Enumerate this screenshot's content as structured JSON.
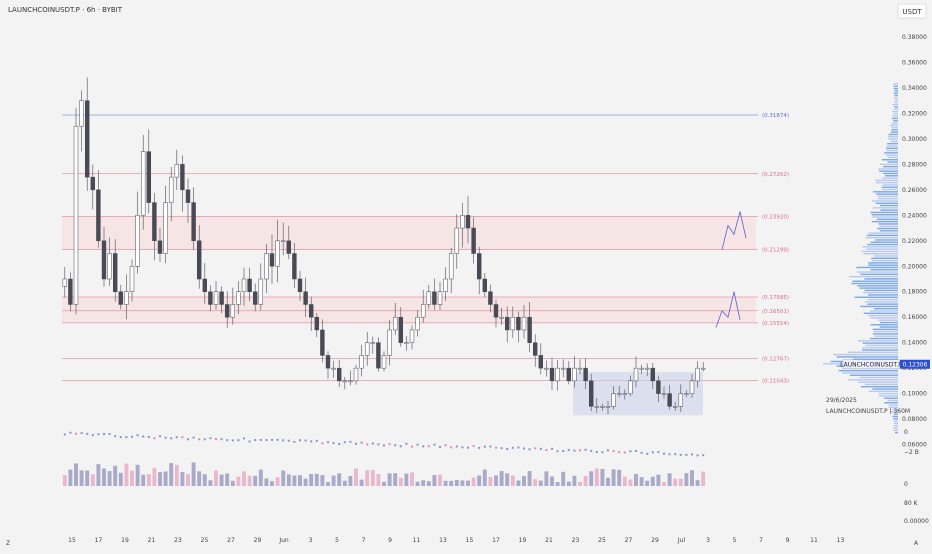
{
  "header": {
    "symbol_title": "LAUNCHCOINUSDT.P · 6h · BYBIT",
    "currency_button": "USDT"
  },
  "chart_data": {
    "type": "candlestick",
    "symbol": "LAUNCHCOINUSDT.P",
    "interval": "6h",
    "exchange": "BYBIT",
    "currency": "USDT",
    "price_axis": {
      "range": [
        0.0,
        0.39
      ],
      "ticks": [
        "0.38000",
        "0.36000",
        "0.34000",
        "0.32000",
        "0.30000",
        "0.28000",
        "0.26000",
        "0.24000",
        "0.22000",
        "0.20000",
        "0.18000",
        "0.16000",
        "0.14000",
        "0.12000",
        "0.10000",
        "0.08000",
        "0.06000",
        "0.04000",
        "0.02000",
        "0.00000"
      ]
    },
    "time_axis": {
      "labels": [
        "15",
        "17",
        "19",
        "21",
        "23",
        "25",
        "27",
        "29",
        "Jun",
        "3",
        "5",
        "7",
        "9",
        "11",
        "13",
        "15",
        "17",
        "19",
        "21",
        "23",
        "25",
        "27",
        "29",
        "Jul",
        "3",
        "5",
        "7",
        "9",
        "11",
        "13"
      ]
    },
    "levels": [
      {
        "label": "(0.31874)",
        "value": 0.31874,
        "color": "#5a6fd6"
      },
      {
        "label": "(0.27262)",
        "value": 0.27262,
        "color": "#e26a8a"
      },
      {
        "label": "(0.23920)",
        "value": 0.2392,
        "color": "#e26a8a"
      },
      {
        "label": "(0.21299)",
        "value": 0.21299,
        "color": "#e26a8a"
      },
      {
        "label": "(0.17585)",
        "value": 0.17585,
        "color": "#e26a8a"
      },
      {
        "label": "(0.16501)",
        "value": 0.16501,
        "color": "#e26a8a"
      },
      {
        "label": "(0.15554)",
        "value": 0.15554,
        "color": "#e26a8a"
      },
      {
        "label": "(0.12767)",
        "value": 0.12767,
        "color": "#e26a8a"
      },
      {
        "label": "(0.11043)",
        "value": 0.11043,
        "color": "#e26a8a"
      }
    ],
    "zones": [
      {
        "from": 0.21299,
        "to": 0.2392
      },
      {
        "from": 0.15554,
        "to": 0.17585
      }
    ],
    "range_box": {
      "from_price": 0.083,
      "to_price": 0.117,
      "color": "#c9cdea"
    },
    "current_price": {
      "symbol_label": "LAUNCHCOINUSDT.P",
      "value_label": "0.12306",
      "value": 0.12306
    },
    "closes": [
      0.19,
      0.17,
      0.31,
      0.33,
      0.27,
      0.26,
      0.22,
      0.19,
      0.21,
      0.18,
      0.17,
      0.18,
      0.2,
      0.24,
      0.29,
      0.25,
      0.22,
      0.21,
      0.25,
      0.27,
      0.28,
      0.26,
      0.25,
      0.22,
      0.19,
      0.18,
      0.17,
      0.18,
      0.17,
      0.16,
      0.17,
      0.18,
      0.19,
      0.18,
      0.17,
      0.19,
      0.21,
      0.2,
      0.22,
      0.22,
      0.21,
      0.19,
      0.18,
      0.17,
      0.16,
      0.15,
      0.13,
      0.12,
      0.12,
      0.11,
      0.11,
      0.11,
      0.12,
      0.13,
      0.14,
      0.14,
      0.12,
      0.13,
      0.15,
      0.16,
      0.14,
      0.14,
      0.15,
      0.16,
      0.17,
      0.18,
      0.17,
      0.18,
      0.19,
      0.21,
      0.23,
      0.24,
      0.23,
      0.21,
      0.19,
      0.18,
      0.17,
      0.16,
      0.16,
      0.15,
      0.16,
      0.15,
      0.16,
      0.14,
      0.13,
      0.12,
      0.12,
      0.11,
      0.12,
      0.12,
      0.11,
      0.12,
      0.12,
      0.11,
      0.09,
      0.09,
      0.09,
      0.09,
      0.1,
      0.1,
      0.1,
      0.11,
      0.12,
      0.12,
      0.12,
      0.11,
      0.1,
      0.1,
      0.09,
      0.09,
      0.1,
      0.1,
      0.11,
      0.12,
      0.12
    ],
    "volume_axis": {
      "ticks": [
        "0",
        "−2 B",
        "0",
        "80 K",
        "0.00000"
      ]
    },
    "date_labels": {
      "date": "29/6/2025",
      "watermark": "LAUNCHCOINUSDT.P | 360M"
    },
    "projections": [
      {
        "desc": "upper path",
        "points": [
          [
            0.213,
            0
          ],
          [
            0.232,
            1
          ],
          [
            0.225,
            2
          ],
          [
            0.243,
            3
          ],
          [
            0.222,
            4
          ]
        ]
      },
      {
        "desc": "lower path",
        "points": [
          [
            0.152,
            0
          ],
          [
            0.165,
            1
          ],
          [
            0.16,
            2
          ],
          [
            0.18,
            3
          ],
          [
            0.158,
            4
          ]
        ]
      }
    ]
  }
}
